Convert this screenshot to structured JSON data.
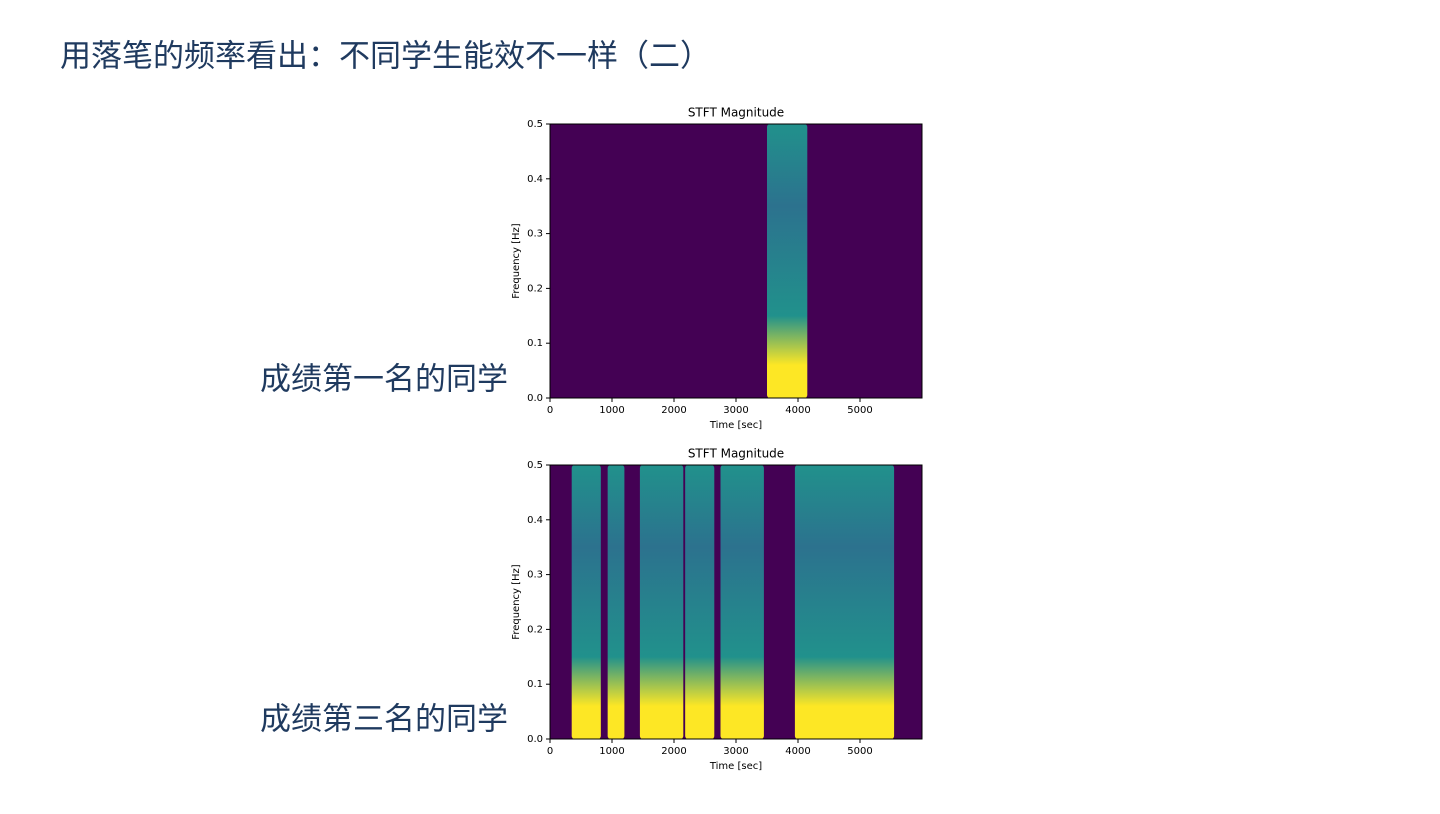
{
  "slide": {
    "title": "用落笔的频率看出：不同学生能效不一样（二）",
    "labels": [
      "成绩第一名的同学",
      "成绩第三名的同学"
    ]
  },
  "chart_data": [
    {
      "type": "spectrogram",
      "title": "STFT Magnitude",
      "x_label": "Time [sec]",
      "y_label": "Frequency [Hz]",
      "xlim": [
        0,
        6000
      ],
      "ylim": [
        0,
        0.5
      ],
      "xticks": [
        0,
        1000,
        2000,
        3000,
        4000,
        5000
      ],
      "yticks": [
        {
          "value": 0,
          "label": "0.0"
        },
        0.1,
        0.2,
        0.3,
        0.4,
        0.5
      ],
      "background": "#440154",
      "color": "#21918c",
      "peak_color": "#fde725",
      "bands": [
        [
          3500,
          4150
        ]
      ]
    },
    {
      "type": "spectrogram",
      "title": "STFT Magnitude",
      "x_label": "Time [sec]",
      "y_label": "Frequency [Hz]",
      "xlim": [
        0,
        6000
      ],
      "ylim": [
        0,
        0.5
      ],
      "xticks": [
        0,
        1000,
        2000,
        3000,
        4000,
        5000
      ],
      "yticks": [
        {
          "value": 0,
          "label": "0.0"
        },
        0.1,
        0.2,
        0.3,
        0.4,
        0.5
      ],
      "background": "#440154",
      "color": "#21918c",
      "peak_color": "#fde725",
      "bands": [
        [
          350,
          820
        ],
        [
          930,
          1200
        ],
        [
          1450,
          2150
        ],
        [
          2180,
          2650
        ],
        [
          2750,
          3450
        ],
        [
          3950,
          5550
        ]
      ]
    }
  ]
}
